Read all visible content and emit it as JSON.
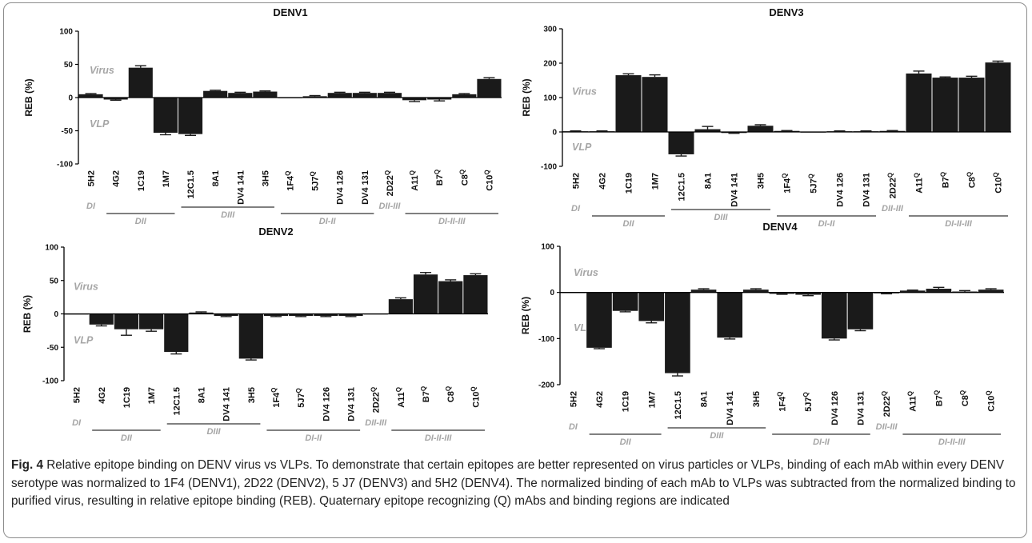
{
  "colors": {
    "bar": "#1a1a1a",
    "axis": "#000000",
    "region_text": "#a6a6a6",
    "frame": "#8c8c8c"
  },
  "caption": {
    "fig_label": "Fig. 4",
    "text": " Relative epitope binding on DENV virus vs VLPs. To demonstrate that certain epitopes are better represented on virus particles or VLPs, binding of each mAb within every DENV serotype was normalized to 1F4 (DENV1), 2D22 (DENV2), 5 J7 (DENV3) and 5H2 (DENV4). The normalized binding of each mAb to VLPs was subtracted from the normalized binding to purified virus, resulting in relative epitope binding (REB). Quaternary epitope recognizing (Q) mAbs and binding regions are indicated"
  },
  "chart_data": [
    {
      "type": "bar",
      "title": "DENV1",
      "ylabel": "REB (%)",
      "ylim": [
        -100,
        100
      ],
      "yticks": [
        "100",
        "50",
        "0",
        "-50",
        "-100"
      ],
      "zone_labels": {
        "upper": "Virus",
        "lower": "VLP"
      },
      "categories": [
        "5H2",
        "4G2",
        "1C19",
        "1M7",
        "12C1.5",
        "8A1",
        "DV4 141",
        "3H5",
        "1F4",
        "5J7",
        "DV4 126",
        "DV4 131",
        "2D22",
        "A11",
        "B7",
        "C8",
        "C10"
      ],
      "quaternary": [
        false,
        false,
        false,
        false,
        false,
        false,
        false,
        false,
        true,
        true,
        false,
        false,
        true,
        true,
        true,
        true,
        true
      ],
      "values": [
        5,
        -3,
        45,
        -53,
        -55,
        10,
        7,
        9,
        0,
        2,
        7,
        7,
        7,
        -4,
        -3,
        5,
        28
      ],
      "errors": [
        1,
        1,
        3,
        3,
        2,
        1,
        1,
        1,
        0,
        1,
        1,
        1,
        1,
        2,
        2,
        1,
        2
      ],
      "regions": [
        {
          "label": "DI",
          "start": 0,
          "end": 0,
          "line": false
        },
        {
          "label": "DII",
          "start": 1,
          "end": 3,
          "line": true
        },
        {
          "label": "DIII",
          "start": 4,
          "end": 7,
          "line": true
        },
        {
          "label": "DI-II",
          "start": 8,
          "end": 11,
          "line": true
        },
        {
          "label": "DII-III",
          "start": 12,
          "end": 12,
          "line": false
        },
        {
          "label": "DI-II-III",
          "start": 13,
          "end": 16,
          "line": true
        }
      ]
    },
    {
      "type": "bar",
      "title": "DENV3",
      "ylabel": "REB (%)",
      "ylim": [
        -100,
        300
      ],
      "yticks": [
        "300",
        "200",
        "100",
        "0",
        "-100"
      ],
      "zone_labels": {
        "upper": "Virus",
        "lower": "VLP"
      },
      "categories": [
        "5H2",
        "4G2",
        "1C19",
        "1M7",
        "12C1.5",
        "8A1",
        "DV4 141",
        "3H5",
        "1F4",
        "5J7",
        "DV4 126",
        "DV4 131",
        "2D22",
        "A11",
        "B7",
        "C8",
        "C10"
      ],
      "quaternary": [
        false,
        false,
        false,
        false,
        false,
        false,
        false,
        false,
        true,
        true,
        false,
        false,
        true,
        true,
        true,
        true,
        true
      ],
      "values": [
        2,
        2,
        165,
        160,
        -65,
        8,
        -3,
        18,
        3,
        0,
        2,
        2,
        3,
        170,
        158,
        158,
        202
      ],
      "errors": [
        1,
        1,
        4,
        6,
        5,
        8,
        1,
        3,
        1,
        0,
        1,
        1,
        1,
        7,
        2,
        4,
        4
      ],
      "regions": [
        {
          "label": "DI",
          "start": 0,
          "end": 0,
          "line": false
        },
        {
          "label": "DII",
          "start": 1,
          "end": 3,
          "line": true
        },
        {
          "label": "DIII",
          "start": 4,
          "end": 7,
          "line": true
        },
        {
          "label": "DI-II",
          "start": 8,
          "end": 11,
          "line": true
        },
        {
          "label": "DII-III",
          "start": 12,
          "end": 12,
          "line": false
        },
        {
          "label": "DI-II-III",
          "start": 13,
          "end": 16,
          "line": true
        }
      ]
    },
    {
      "type": "bar",
      "title": "DENV2",
      "ylabel": "REB (%)",
      "ylim": [
        -100,
        100
      ],
      "yticks": [
        "100",
        "50",
        "0",
        "-50",
        "-100"
      ],
      "zone_labels": {
        "upper": "Virus",
        "lower": "VLP"
      },
      "categories": [
        "5H2",
        "4G2",
        "1C19",
        "1M7",
        "12C1.5",
        "8A1",
        "DV4 141",
        "3H5",
        "1F4",
        "5J7",
        "DV4 126",
        "DV4 131",
        "2D22",
        "A11",
        "B7",
        "C8",
        "C10"
      ],
      "quaternary": [
        false,
        false,
        false,
        false,
        false,
        false,
        false,
        false,
        true,
        true,
        false,
        false,
        true,
        true,
        true,
        true,
        true
      ],
      "values": [
        -1,
        -16,
        -23,
        -23,
        -57,
        2,
        -3,
        -67,
        -3,
        -3,
        -3,
        -3,
        0,
        22,
        59,
        49,
        58
      ],
      "errors": [
        0,
        2,
        9,
        3,
        3,
        1,
        1,
        2,
        1,
        1,
        1,
        1,
        0,
        2,
        3,
        2,
        2
      ],
      "regions": [
        {
          "label": "DI",
          "start": 0,
          "end": 0,
          "line": false
        },
        {
          "label": "DII",
          "start": 1,
          "end": 3,
          "line": true
        },
        {
          "label": "DIII",
          "start": 4,
          "end": 7,
          "line": true
        },
        {
          "label": "DI-II",
          "start": 8,
          "end": 11,
          "line": true
        },
        {
          "label": "DII-III",
          "start": 12,
          "end": 12,
          "line": false
        },
        {
          "label": "DI-II-III",
          "start": 13,
          "end": 16,
          "line": true
        }
      ]
    },
    {
      "type": "bar",
      "title": "DENV4",
      "ylabel": "REB (%)",
      "ylim": [
        -200,
        100
      ],
      "yticks": [
        "100",
        "0",
        "-100",
        "-200"
      ],
      "zone_labels": {
        "upper": "Virus",
        "lower": "VLP"
      },
      "categories": [
        "5H2",
        "4G2",
        "1C19",
        "1M7",
        "12C1.5",
        "8A1",
        "DV4 141",
        "3H5",
        "1F4",
        "5J7",
        "DV4 126",
        "DV4 131",
        "2D22",
        "A11",
        "B7",
        "C8",
        "C10"
      ],
      "quaternary": [
        false,
        false,
        false,
        false,
        false,
        false,
        false,
        false,
        true,
        true,
        false,
        false,
        true,
        true,
        true,
        true,
        true
      ],
      "values": [
        0,
        -120,
        -40,
        -62,
        -175,
        6,
        -98,
        6,
        -3,
        -5,
        -100,
        -80,
        -2,
        4,
        8,
        2,
        6
      ],
      "errors": [
        0,
        2,
        2,
        4,
        6,
        2,
        3,
        2,
        1,
        2,
        3,
        3,
        1,
        1,
        3,
        2,
        2
      ],
      "regions": [
        {
          "label": "DI",
          "start": 0,
          "end": 0,
          "line": false
        },
        {
          "label": "DII",
          "start": 1,
          "end": 3,
          "line": true
        },
        {
          "label": "DIII",
          "start": 4,
          "end": 7,
          "line": true
        },
        {
          "label": "DI-II",
          "start": 8,
          "end": 11,
          "line": true
        },
        {
          "label": "DII-III",
          "start": 12,
          "end": 12,
          "line": false
        },
        {
          "label": "DI-II-III",
          "start": 13,
          "end": 16,
          "line": true
        }
      ]
    }
  ]
}
